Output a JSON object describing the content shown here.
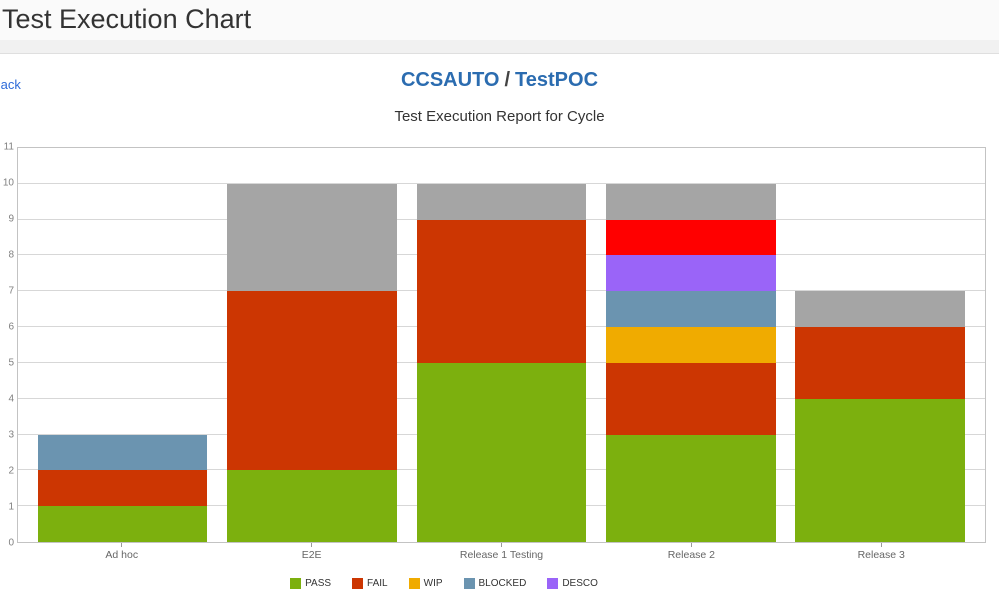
{
  "header": {
    "title": "Test Execution Chart"
  },
  "nav": {
    "back_label": "Back"
  },
  "breadcrumb": {
    "project": "CCSAUTO",
    "separator": "/",
    "cycle": "TestPOC"
  },
  "ui_colors": {
    "back_link_blue": "#2e6bd9",
    "breadcrumb_blue": "#2b6cb0",
    "title_dark": "#333333",
    "axis_label_gray": "#808080",
    "category_label_gray": "#666666",
    "gridline_gray": "#d7d7d7",
    "plot_border_gray": "#c3c3c3"
  },
  "chart_data": {
    "type": "bar",
    "stacked": true,
    "title": "Test Execution Report for Cycle",
    "xlabel": "",
    "ylabel": "",
    "categories": [
      "Ad hoc",
      "E2E",
      "Release 1 Testing",
      "Release 2",
      "Release 3"
    ],
    "series": [
      {
        "name": "PASS",
        "color": "#7cb00e",
        "in_legend": true,
        "values": [
          1,
          2,
          5,
          3,
          4
        ]
      },
      {
        "name": "FAIL",
        "color": "#cc3602",
        "in_legend": true,
        "values": [
          1,
          5,
          4,
          2,
          2
        ]
      },
      {
        "name": "WIP",
        "color": "#f0ab00",
        "in_legend": true,
        "values": [
          0,
          0,
          0,
          1,
          0
        ]
      },
      {
        "name": "BLOCKED",
        "color": "#6b94b0",
        "in_legend": true,
        "values": [
          1,
          0,
          0,
          1,
          0
        ]
      },
      {
        "name": "DESCO",
        "color": "#9a64f8",
        "in_legend": true,
        "values": [
          0,
          0,
          0,
          1,
          0
        ]
      },
      {
        "name": "unlabeled-red",
        "color": "#ff0000",
        "in_legend": false,
        "values": [
          0,
          0,
          0,
          1,
          0
        ]
      },
      {
        "name": "unlabeled-gray",
        "color": "#a5a5a5",
        "in_legend": false,
        "values": [
          0,
          3,
          1,
          1,
          1
        ]
      }
    ],
    "stack_totals": [
      3,
      10,
      10,
      10,
      7
    ],
    "ylim": [
      0,
      11
    ],
    "yticks": [
      0,
      1,
      2,
      3,
      4,
      5,
      6,
      7,
      8,
      9,
      10,
      11
    ],
    "grid": true,
    "legend_position": "bottom",
    "legend_labels": [
      "PASS",
      "FAIL",
      "WIP",
      "BLOCKED",
      "DESCO"
    ]
  }
}
